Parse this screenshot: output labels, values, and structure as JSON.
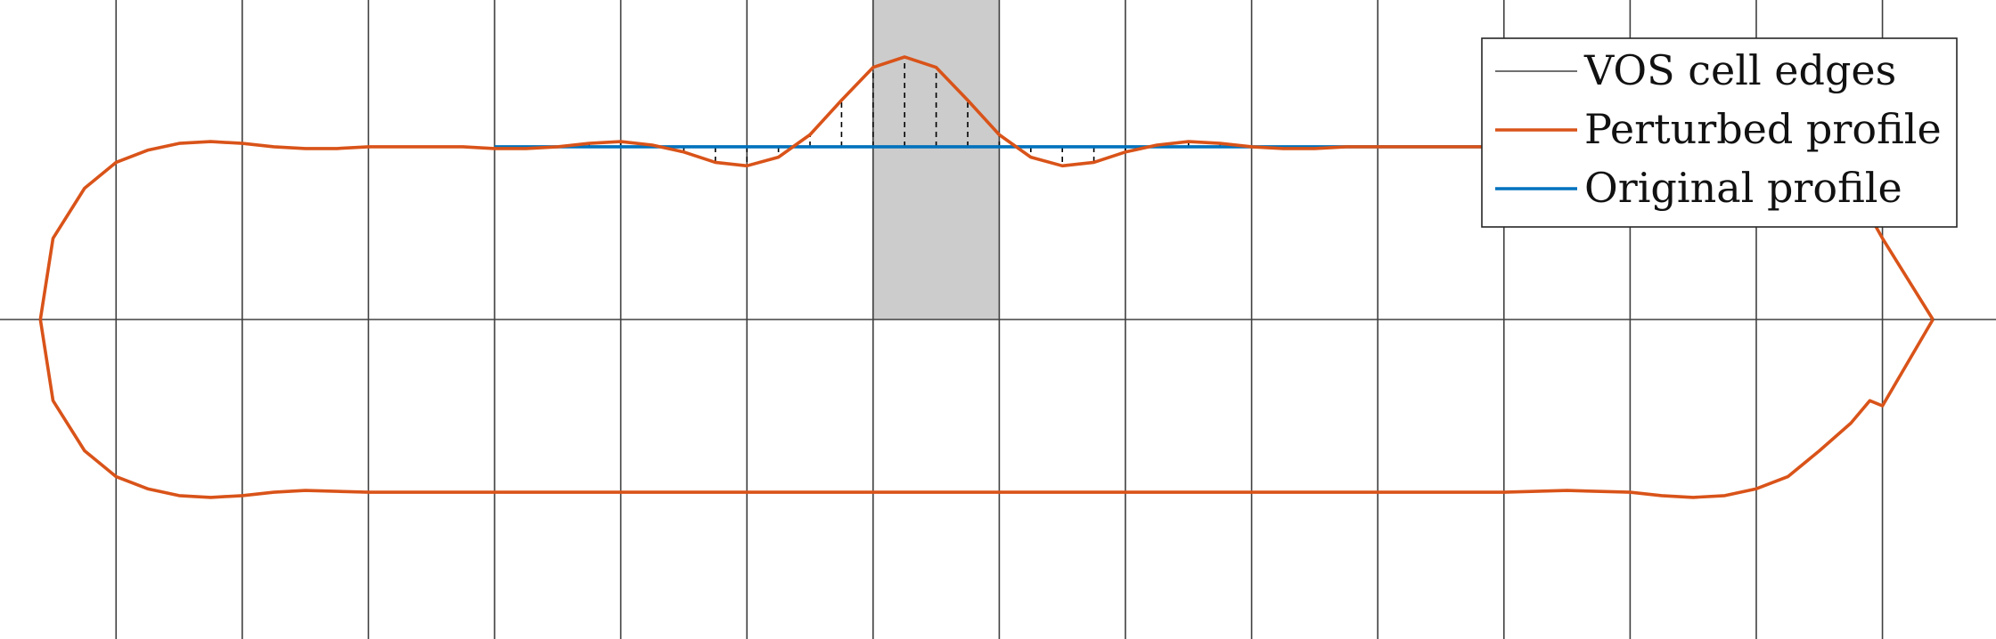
{
  "legend": {
    "cell_edges": "VOS cell edges",
    "perturbed": "Perturbed profile",
    "original": "Original profile"
  },
  "colors": {
    "cell_edges": "#404040",
    "perturbed": "#d95319",
    "original": "#0072bd",
    "highlight": "#cccccc",
    "deviation": "#000000"
  },
  "chart_data": {
    "type": "line",
    "cell_edges_x": [
      1,
      2,
      3,
      4,
      5,
      6,
      7,
      8,
      9,
      10,
      11,
      12,
      13,
      14,
      15
    ],
    "highlighted_cell": [
      7,
      8
    ],
    "original_profile": {
      "x": [
        4,
        12
      ],
      "y": 1.0
    },
    "perturbed_profile": {
      "upper": {
        "x": [
          0.4,
          0.5,
          0.75,
          1.0,
          1.25,
          1.5,
          1.75,
          2.0,
          2.25,
          2.5,
          2.75,
          3.0,
          3.25,
          3.5,
          3.75,
          4.0,
          4.25,
          4.5,
          4.75,
          5.0,
          5.25,
          5.5,
          5.75,
          6.0,
          6.25,
          6.5,
          6.75,
          7.0,
          7.25,
          7.5,
          7.75,
          8.0,
          8.25,
          8.5,
          8.75,
          9.0,
          9.25,
          9.5,
          9.75,
          10.0,
          10.25,
          10.5,
          10.75,
          11.0,
          11.25,
          11.5,
          11.75,
          12.0,
          12.5,
          13.0,
          14.0,
          14.5,
          14.9,
          15.0,
          15.4
        ],
        "y": [
          0.0,
          0.47,
          0.76,
          0.91,
          0.98,
          1.02,
          1.03,
          1.02,
          1.0,
          0.99,
          0.99,
          1.0,
          1.0,
          1.0,
          1.0,
          0.99,
          0.99,
          1.0,
          1.02,
          1.03,
          1.01,
          0.97,
          0.91,
          0.89,
          0.94,
          1.07,
          1.27,
          1.46,
          1.52,
          1.46,
          1.27,
          1.07,
          0.94,
          0.89,
          0.91,
          0.97,
          1.01,
          1.03,
          1.02,
          1.0,
          0.99,
          0.99,
          1.0,
          1.0,
          1.0,
          1.0,
          1.0,
          1.0,
          1.0,
          1.0,
          1.0,
          0.95,
          0.6,
          0.47,
          0.0
        ]
      },
      "lower": {
        "x": [
          0.4,
          0.5,
          0.75,
          1.0,
          1.25,
          1.5,
          1.75,
          2.0,
          2.25,
          2.5,
          3.0,
          4.0,
          5.0,
          6.0,
          7.0,
          8.0,
          9.0,
          10.0,
          11.0,
          12.0,
          12.5,
          13.0,
          13.25,
          13.5,
          13.75,
          14.0,
          14.25,
          14.5,
          14.75,
          14.9,
          15.0,
          15.4
        ],
        "y": [
          0.0,
          -0.47,
          -0.76,
          -0.91,
          -0.98,
          -1.02,
          -1.03,
          -1.02,
          -1.0,
          -0.99,
          -1.0,
          -1.0,
          -1.0,
          -1.0,
          -1.0,
          -1.0,
          -1.0,
          -1.0,
          -1.0,
          -1.0,
          -0.99,
          -1.0,
          -1.02,
          -1.03,
          -1.02,
          -0.98,
          -0.91,
          -0.76,
          -0.6,
          -0.47,
          -0.5,
          0.0
        ]
      }
    },
    "deviation_markers_x": [
      4.25,
      4.5,
      4.75,
      5.0,
      5.25,
      5.5,
      5.75,
      6.0,
      6.25,
      6.5,
      6.75,
      7.0,
      7.25,
      7.5,
      7.75,
      8.0,
      8.25,
      8.5,
      8.75,
      9.0,
      9.25,
      9.5,
      9.75,
      10.0,
      10.25,
      10.5,
      10.75,
      11.0
    ],
    "xlim": [
      0.08,
      15.9
    ],
    "ylim": [
      -1.85,
      1.85
    ],
    "horizontal_axis_y": 0,
    "grid": true,
    "legend_position": "top-right"
  }
}
